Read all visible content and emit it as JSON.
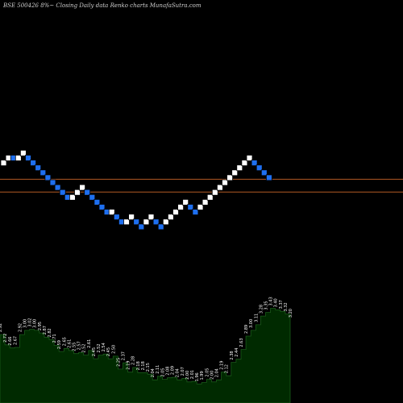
{
  "title": "BSE 500426  8%~  Closing Daily data  Renko  charts MunafaSutra.com",
  "colors": {
    "background": "#000000",
    "up_brick": "#ffffff",
    "down_brick": "#1e6ff0",
    "brick_outline": "#000000",
    "line_1": "#b35a24",
    "line_2": "#b35a24",
    "area_fill": "#002a00",
    "area_edge": "#1a5a1a",
    "label": "#ffffff"
  },
  "chart_data": [
    {
      "type": "renko",
      "bricks": [
        {
          "dir": "up",
          "level": 1
        },
        {
          "dir": "up",
          "level": 0
        },
        {
          "dir": "down",
          "level": 0
        },
        {
          "dir": "up",
          "level": 0
        },
        {
          "dir": "up",
          "level": -1
        },
        {
          "dir": "down",
          "level": 0
        },
        {
          "dir": "down",
          "level": 1
        },
        {
          "dir": "down",
          "level": 2
        },
        {
          "dir": "down",
          "level": 3
        },
        {
          "dir": "down",
          "level": 4
        },
        {
          "dir": "down",
          "level": 5
        },
        {
          "dir": "down",
          "level": 6
        },
        {
          "dir": "down",
          "level": 7
        },
        {
          "dir": "down",
          "level": 8
        },
        {
          "dir": "up",
          "level": 8
        },
        {
          "dir": "up",
          "level": 7
        },
        {
          "dir": "up",
          "level": 6
        },
        {
          "dir": "down",
          "level": 7
        },
        {
          "dir": "down",
          "level": 8
        },
        {
          "dir": "down",
          "level": 9
        },
        {
          "dir": "down",
          "level": 10
        },
        {
          "dir": "down",
          "level": 11
        },
        {
          "dir": "up",
          "level": 11
        },
        {
          "dir": "down",
          "level": 12
        },
        {
          "dir": "down",
          "level": 13
        },
        {
          "dir": "up",
          "level": 13
        },
        {
          "dir": "up",
          "level": 12
        },
        {
          "dir": "down",
          "level": 13
        },
        {
          "dir": "down",
          "level": 14
        },
        {
          "dir": "up",
          "level": 13
        },
        {
          "dir": "up",
          "level": 12
        },
        {
          "dir": "down",
          "level": 13
        },
        {
          "dir": "down",
          "level": 14
        },
        {
          "dir": "up",
          "level": 13
        },
        {
          "dir": "up",
          "level": 12
        },
        {
          "dir": "up",
          "level": 11
        },
        {
          "dir": "up",
          "level": 10
        },
        {
          "dir": "up",
          "level": 9
        },
        {
          "dir": "down",
          "level": 10
        },
        {
          "dir": "down",
          "level": 11
        },
        {
          "dir": "up",
          "level": 10
        },
        {
          "dir": "up",
          "level": 9
        },
        {
          "dir": "up",
          "level": 8
        },
        {
          "dir": "up",
          "level": 7
        },
        {
          "dir": "up",
          "level": 6
        },
        {
          "dir": "up",
          "level": 5
        },
        {
          "dir": "up",
          "level": 4
        },
        {
          "dir": "up",
          "level": 3
        },
        {
          "dir": "up",
          "level": 2
        },
        {
          "dir": "up",
          "level": 1
        },
        {
          "dir": "up",
          "level": 0
        },
        {
          "dir": "down",
          "level": 1
        },
        {
          "dir": "down",
          "level": 2
        },
        {
          "dir": "down",
          "level": 3
        },
        {
          "dir": "down",
          "level": 4
        }
      ],
      "horizontal_lines": [
        {
          "level": 4.9
        },
        {
          "level": 7.5
        }
      ]
    },
    {
      "type": "area",
      "labels": [
        "2.92",
        "2.72",
        "2.66",
        "2.67",
        "2.92",
        "3.00",
        "3.02",
        "3.00",
        "2.95",
        "2.87",
        "2.82",
        "2.71",
        "2.59",
        "2.65",
        "2.61",
        "2.55",
        "2.57",
        "2.52",
        "2.61",
        "2.45",
        "2.52",
        "2.54",
        "2.45",
        "2.50",
        "2.25",
        "2.37",
        "2.19",
        "2.28",
        "2.18",
        "2.18",
        "2.15",
        "2.04",
        "2.11",
        "2.05",
        "2.08",
        "2.09",
        "2.04",
        "2.07",
        "2.00",
        "2.01",
        "1.96",
        "1.99",
        "2.05",
        "2.00",
        "2.04",
        "2.19",
        "2.12",
        "2.38",
        "2.44",
        "2.63",
        "2.89",
        "3.00",
        "3.11",
        "3.28",
        "3.35",
        "3.43",
        "3.40",
        "3.37",
        "3.32",
        "3.20"
      ],
      "values": [
        2.92,
        2.72,
        2.66,
        2.67,
        2.92,
        3.0,
        3.02,
        3.0,
        2.95,
        2.87,
        2.82,
        2.71,
        2.59,
        2.65,
        2.61,
        2.55,
        2.57,
        2.52,
        2.61,
        2.45,
        2.52,
        2.54,
        2.45,
        2.5,
        2.25,
        2.37,
        2.19,
        2.28,
        2.18,
        2.18,
        2.15,
        2.04,
        2.11,
        2.05,
        2.08,
        2.09,
        2.04,
        2.07,
        2.0,
        2.01,
        1.96,
        1.99,
        2.05,
        2.0,
        2.04,
        2.19,
        2.12,
        2.38,
        2.44,
        2.63,
        2.89,
        3.0,
        3.11,
        3.28,
        3.35,
        3.43,
        3.4,
        3.37,
        3.32,
        3.2
      ]
    }
  ]
}
